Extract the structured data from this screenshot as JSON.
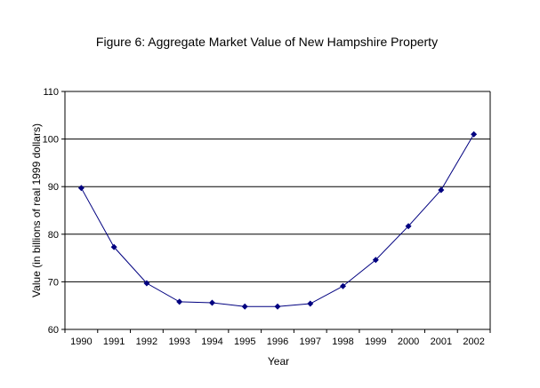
{
  "chart_data": {
    "type": "line",
    "title": "Figure 6: Aggregate Market Value of New Hampshire Property",
    "xlabel": "Year",
    "ylabel": "Value (in billions of real 1999 dollars)",
    "categories": [
      "1990",
      "1991",
      "1992",
      "1993",
      "1994",
      "1995",
      "1996",
      "1997",
      "1998",
      "1999",
      "2000",
      "2001",
      "2002"
    ],
    "series": [
      {
        "values": [
          89.7,
          77.3,
          69.7,
          65.8,
          65.6,
          64.8,
          64.8,
          65.4,
          69.1,
          74.6,
          81.7,
          89.3,
          101.0
        ]
      }
    ],
    "ylim": [
      60,
      110
    ],
    "yticks": [
      60,
      70,
      80,
      90,
      100,
      110
    ],
    "grid": true,
    "legend": "none",
    "marker": "diamond",
    "colors": {
      "series": "#000080",
      "grid": "#000000"
    }
  }
}
